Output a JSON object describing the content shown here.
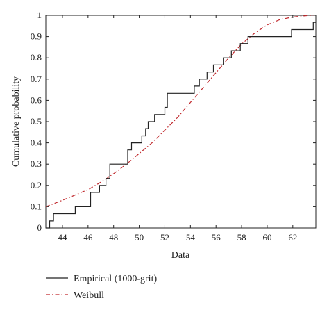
{
  "chart_data": {
    "type": "line",
    "title": "",
    "xlabel": "Data",
    "ylabel": "Cumulative probability",
    "xlim": [
      42.7,
      63.8
    ],
    "ylim": [
      0,
      1
    ],
    "grid": false,
    "legend_position": "below",
    "x_ticks": [
      44,
      46,
      48,
      50,
      52,
      54,
      56,
      58,
      60,
      62
    ],
    "y_ticks": [
      0,
      0.1,
      0.2,
      0.3,
      0.4,
      0.5,
      0.6,
      0.7,
      0.8,
      0.9,
      1
    ],
    "y_tick_labels": [
      "0",
      "0.1",
      "0.2",
      "0.3",
      "0.4",
      "0.5",
      "0.6",
      "0.7",
      "0.8",
      "0.9",
      "1"
    ],
    "series": [
      {
        "name": "Empirical (1000-grit)",
        "style": "solid-step",
        "color": "#222222",
        "x": [
          42.7,
          43.0,
          43.3,
          45.0,
          46.2,
          46.9,
          47.4,
          47.7,
          49.1,
          49.4,
          50.2,
          50.5,
          50.7,
          51.2,
          52.0,
          52.2,
          54.3,
          54.7,
          55.3,
          55.8,
          56.6,
          57.2,
          57.9,
          58.5,
          61.9,
          63.6
        ],
        "y": [
          0.0,
          0.033,
          0.067,
          0.1,
          0.167,
          0.2,
          0.233,
          0.3,
          0.367,
          0.4,
          0.433,
          0.467,
          0.5,
          0.533,
          0.567,
          0.633,
          0.667,
          0.7,
          0.733,
          0.767,
          0.8,
          0.833,
          0.867,
          0.9,
          0.933,
          0.967
        ]
      },
      {
        "name": "Weibull",
        "style": "dash-dot",
        "color": "#c0282c",
        "x": [
          42.7,
          44,
          45,
          46,
          47,
          48,
          49,
          50,
          51,
          52,
          53,
          54,
          55,
          56,
          57,
          58,
          59,
          60,
          61,
          62,
          63,
          63.6
        ],
        "y": [
          0.1,
          0.13,
          0.155,
          0.18,
          0.215,
          0.255,
          0.3,
          0.35,
          0.4,
          0.46,
          0.52,
          0.59,
          0.66,
          0.73,
          0.8,
          0.865,
          0.915,
          0.955,
          0.98,
          0.992,
          0.998,
          1.0
        ]
      }
    ]
  }
}
